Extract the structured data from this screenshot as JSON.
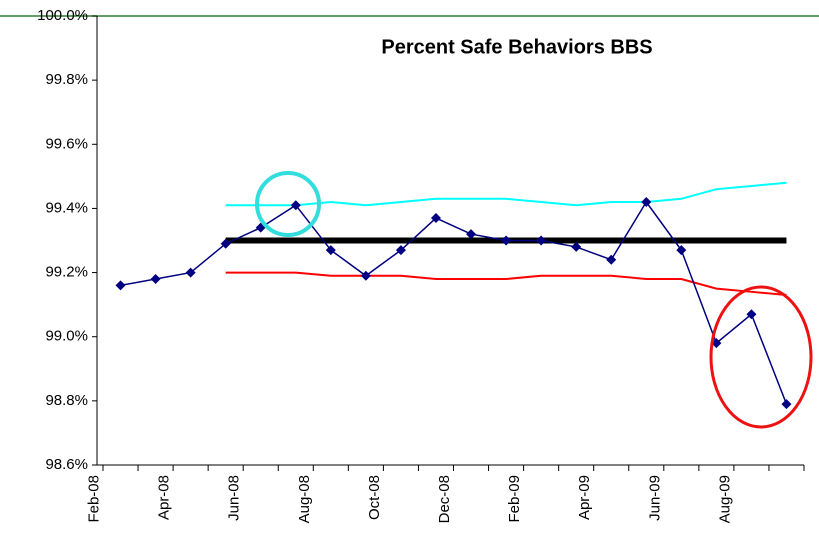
{
  "chart_data": {
    "type": "line",
    "title": "Percent Safe Behaviors BBS",
    "categories": [
      "Feb-08",
      null,
      "Apr-08",
      null,
      "Jun-08",
      null,
      "Aug-08",
      null,
      "Oct-08",
      null,
      "Dec-08",
      null,
      "Feb-09",
      null,
      "Apr-09",
      null,
      "Jun-09",
      null,
      "Aug-09",
      null
    ],
    "ylim": [
      98.6,
      100
    ],
    "yticks": [
      {
        "value": 98.6,
        "label": "98.6%"
      },
      {
        "value": 98.8,
        "label": "98.8%"
      },
      {
        "value": 99.0,
        "label": "99.0%"
      },
      {
        "value": 99.2,
        "label": "99.2%"
      },
      {
        "value": 99.4,
        "label": "99.4%"
      },
      {
        "value": 99.6,
        "label": "99.6%"
      },
      {
        "value": 99.8,
        "label": "99.8%"
      },
      {
        "value": 100,
        "label": "100.0%"
      }
    ],
    "grid": false,
    "series": [
      {
        "color": "#00ffff",
        "line_width": 2,
        "marker": "none",
        "values": [
          null,
          null,
          null,
          99.41,
          99.41,
          99.41,
          99.42,
          99.41,
          99.42,
          99.43,
          99.43,
          99.43,
          99.42,
          99.41,
          99.42,
          99.42,
          99.43,
          99.46,
          99.47,
          99.48
        ]
      },
      {
        "color": "#ff0000",
        "line_width": 2,
        "marker": "none",
        "values": [
          null,
          null,
          null,
          99.2,
          99.2,
          99.2,
          99.19,
          99.19,
          99.19,
          99.18,
          99.18,
          99.18,
          99.19,
          99.19,
          99.19,
          99.18,
          99.18,
          99.15,
          99.14,
          99.13
        ]
      },
      {
        "color": "#000000",
        "line_width": 6,
        "marker": "none",
        "values": [
          null,
          null,
          null,
          99.3,
          99.3,
          99.3,
          99.3,
          99.3,
          99.3,
          99.3,
          99.3,
          99.3,
          99.3,
          99.3,
          99.3,
          99.3,
          99.3,
          99.3,
          99.3,
          99.3
        ]
      },
      {
        "color": "#000080",
        "line_width": 1.5,
        "marker": "diamond",
        "values": [
          99.16,
          99.18,
          99.2,
          99.29,
          99.34,
          99.41,
          99.27,
          99.19,
          99.27,
          99.37,
          99.32,
          99.3,
          99.3,
          99.28,
          99.24,
          99.42,
          99.27,
          98.98,
          99.07,
          98.79
        ]
      }
    ]
  }
}
